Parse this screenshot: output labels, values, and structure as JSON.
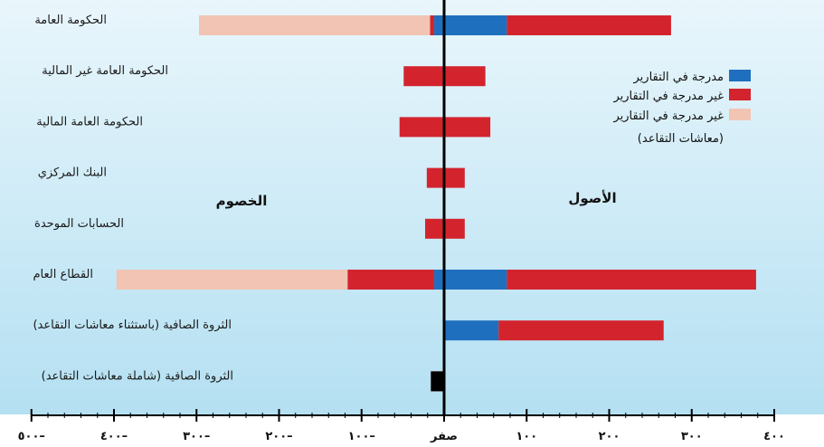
{
  "chart_data": {
    "type": "bar",
    "orientation": "horizontal",
    "stacked": true,
    "categories": [
      "الحكومة العامة",
      "الحكومة العامة غير المالية",
      "الحكومة العامة المالية",
      "البنك المركزي",
      "الحسابات الموحدة",
      "القطاع العام",
      "الثروة الصافية (باستثناء معاشات التقاعد)",
      "الثروة الصافية (شاملة معاشات التقاعد)"
    ],
    "series": [
      {
        "name": "مدرجة في التقارير",
        "color": "#1f6fbf",
        "assets": [
          76,
          0,
          0,
          0,
          0,
          76,
          66,
          0
        ],
        "liabilities": [
          -12,
          0,
          0,
          0,
          0,
          -12,
          0,
          0
        ]
      },
      {
        "name": "غير مدرجة في التقارير",
        "color": "#d3242e",
        "assets": [
          199,
          50,
          56,
          25,
          25,
          302,
          200,
          0
        ],
        "liabilities": [
          -5,
          -49,
          -54,
          -21,
          -23,
          -105,
          0,
          -16
        ]
      },
      {
        "name": "غير مدرجة في التقارير (معاشات التقاعد)",
        "color": "#f2c4b3",
        "assets": [
          0,
          0,
          0,
          0,
          0,
          0,
          0,
          0
        ],
        "liabilities": [
          -280,
          0,
          0,
          0,
          0,
          -280,
          0,
          0
        ]
      }
    ],
    "xlim": [
      -500,
      400
    ],
    "x_ticks": [
      -500,
      -400,
      -300,
      -200,
      -100,
      0,
      100,
      200,
      300,
      400
    ],
    "x_tick_labels": [
      "٥٠٠–",
      "٤٠٠–",
      "٣٠٠–",
      "٢٠٠–",
      "١٠٠–",
      "صفر",
      "١٠٠",
      "٢٠٠",
      "٣٠٠",
      "٤٠٠"
    ],
    "annotations": {
      "assets": "الأصول",
      "liabilities": "الخصوم"
    },
    "legend_position": "top-right",
    "background_color": "#c8e8f5"
  }
}
